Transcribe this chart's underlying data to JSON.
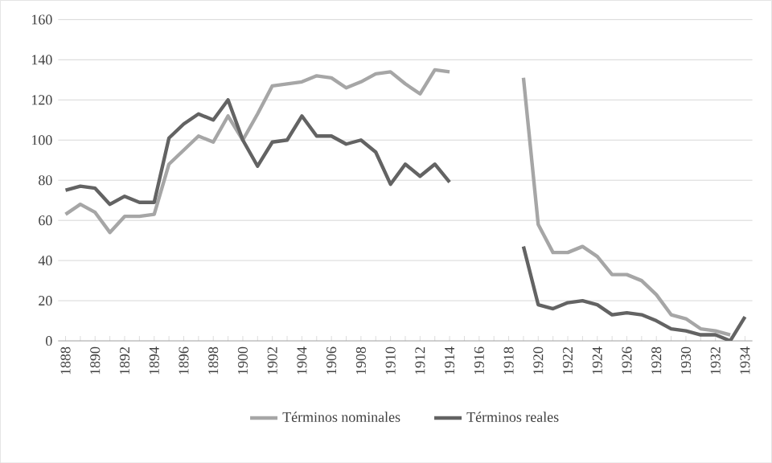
{
  "chart_data": {
    "type": "line",
    "categories": [
      "1888",
      null,
      "1890",
      null,
      "1892",
      null,
      "1894",
      null,
      "1896",
      null,
      "1898",
      null,
      "1900",
      null,
      "1902",
      null,
      "1904",
      null,
      "1906",
      null,
      "1908",
      null,
      "1910",
      null,
      "1912",
      null,
      "1914",
      null,
      "1916",
      null,
      "1918",
      null,
      "1920",
      null,
      "1922",
      null,
      "1924",
      null,
      "1926",
      null,
      "1928",
      null,
      "1930",
      null,
      "1932",
      null,
      "1934"
    ],
    "series": [
      {
        "name": "Términos nominales",
        "color": "#a6a6a6",
        "values": [
          63,
          68,
          64,
          54,
          62,
          62,
          63,
          88,
          95,
          102,
          99,
          112,
          100,
          113,
          127,
          128,
          129,
          132,
          131,
          126,
          129,
          133,
          134,
          128,
          123,
          135,
          134,
          null,
          null,
          null,
          null,
          131,
          58,
          44,
          44,
          47,
          42,
          33,
          33,
          30,
          23,
          13,
          11,
          6,
          5,
          3,
          null
        ]
      },
      {
        "name": "Términos reales",
        "color": "#636363",
        "values": [
          75,
          77,
          76,
          68,
          72,
          69,
          69,
          101,
          108,
          113,
          110,
          120,
          100,
          87,
          99,
          100,
          112,
          102,
          102,
          98,
          100,
          94,
          78,
          88,
          82,
          88,
          79,
          null,
          null,
          null,
          null,
          47,
          18,
          16,
          19,
          20,
          18,
          13,
          14,
          13,
          10,
          6,
          5,
          3,
          3,
          0,
          12
        ]
      }
    ],
    "ylim": [
      0,
      160
    ],
    "yticks": [
      0,
      20,
      40,
      60,
      80,
      100,
      120,
      140,
      160
    ],
    "grid": "y",
    "legend": "bottom",
    "marker": "none",
    "line_style": "solid"
  }
}
